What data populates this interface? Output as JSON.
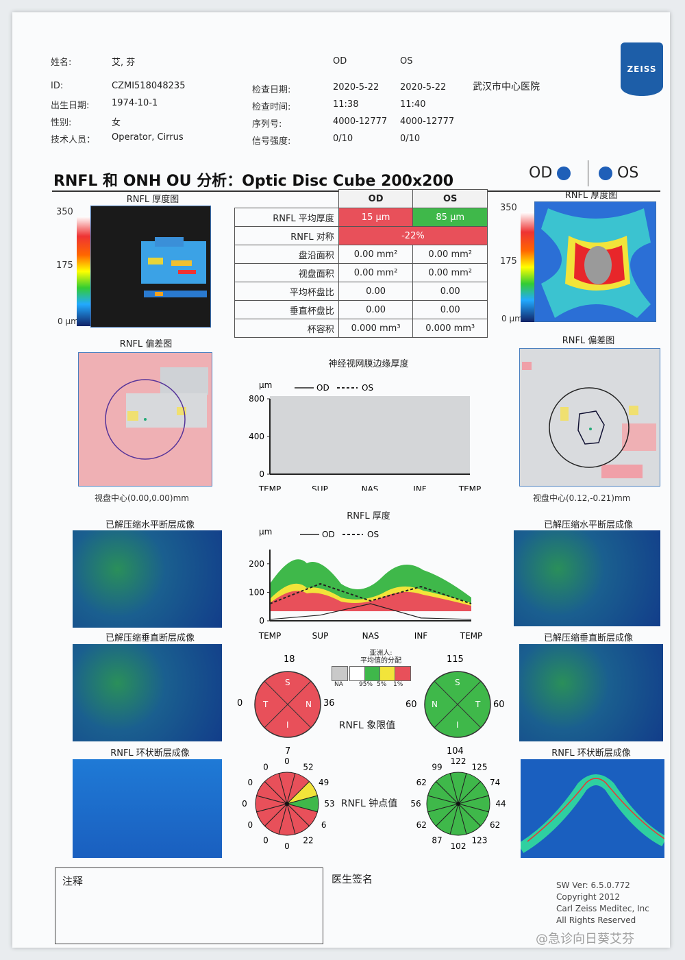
{
  "header": {
    "name_label": "姓名:",
    "name_value": "艾, 芬",
    "id_label": "ID:",
    "id_value": "CZMI518048235",
    "dob_label": "出生日期:",
    "dob_value": "1974-10-1",
    "sex_label": "性别:",
    "sex_value": "女",
    "tech_label": "技术人员：",
    "tech_value": "Operator, Cirrus",
    "col_od": "OD",
    "col_os": "OS",
    "exam_date_label": "检查日期:",
    "exam_date_od": "2020-5-22",
    "exam_date_os": "2020-5-22",
    "exam_time_label": "检查时间:",
    "exam_time_od": "11:38",
    "exam_time_os": "11:40",
    "serial_label": "序列号:",
    "serial_od": "4000-12777",
    "serial_os": "4000-12777",
    "signal_label": "信号强度:",
    "signal_od": "0/10",
    "signal_os": "0/10",
    "hospital": "武汉市中心医院",
    "logo": "ZEISS"
  },
  "title": {
    "text": "RNFL 和 ONH OU 分析：Optic Disc Cube 200x200",
    "od": "OD",
    "os": "OS"
  },
  "thickness_map": {
    "title": "RNFL 厚度图",
    "scale_max": "350",
    "scale_mid": "175",
    "scale_min": "0 μm"
  },
  "table": {
    "col_od": "OD",
    "col_os": "OS",
    "rows": [
      {
        "label": "RNFL 平均厚度",
        "od": "15 μm",
        "os": "85 μm"
      },
      {
        "label": "RNFL 对称",
        "both": "-22%"
      },
      {
        "label": "盘沿面积",
        "od": "0.00 mm²",
        "os": "0.00 mm²"
      },
      {
        "label": "视盘面积",
        "od": "0.00 mm²",
        "os": "0.00 mm²"
      },
      {
        "label": "平均杯盘比",
        "od": "0.00",
        "os": "0.00"
      },
      {
        "label": "垂直杯盘比",
        "od": "0.00",
        "os": "0.00"
      },
      {
        "label": "杯容积",
        "od": "0.000 mm³",
        "os": "0.000 mm³"
      }
    ]
  },
  "deviation_map": {
    "title": "RNFL 偏差图",
    "od_center": "视盘中心(0.00,0.00)mm",
    "os_center": "视盘中心(0.12,-0.21)mm"
  },
  "charts": {
    "nrr_title": "神经视网膜边缘厚度",
    "rnfl_title": "RNFL 厚度",
    "unit": "μm",
    "legend_od": "OD",
    "legend_os": "OS",
    "x_labels": [
      "TEMP",
      "SUP",
      "NAS",
      "INF",
      "TEMP"
    ]
  },
  "chart_data": [
    {
      "type": "line",
      "title": "神经视网膜边缘厚度",
      "ylabel": "μm",
      "categories": [
        "TEMP",
        "SUP",
        "NAS",
        "INF",
        "TEMP"
      ],
      "yticks": [
        0,
        400,
        800
      ],
      "ylim": [
        0,
        800
      ],
      "series": [
        {
          "name": "OD",
          "values": [
            0,
            0,
            0,
            0,
            0
          ]
        },
        {
          "name": "OS",
          "values": [
            0,
            0,
            0,
            0,
            0
          ]
        }
      ]
    },
    {
      "type": "line",
      "title": "RNFL 厚度",
      "ylabel": "μm",
      "categories": [
        "TEMP",
        "SUP",
        "NAS",
        "INF",
        "TEMP"
      ],
      "yticks": [
        0,
        100,
        200
      ],
      "ylim": [
        0,
        250
      ],
      "series": [
        {
          "name": "OD",
          "values": [
            5,
            20,
            60,
            10,
            5
          ]
        },
        {
          "name": "OS",
          "values": [
            60,
            130,
            70,
            120,
            60
          ]
        }
      ]
    }
  ],
  "scans": {
    "horizontal": "已解压缩水平断层成像",
    "vertical": "已解压缩垂直断层成像",
    "circle": "RNFL 环状断层成像"
  },
  "quadrants": {
    "title": "RNFL 象限值",
    "legend_title": "亚洲人:",
    "legend_sub": "平均值的分配",
    "legend_labels": [
      "NA",
      "95%",
      "5%",
      "1%"
    ],
    "od": {
      "top": "18",
      "left": "0",
      "right": "36",
      "bottom": "7",
      "S": "S",
      "T": "T",
      "N": "N",
      "I": "I"
    },
    "os": {
      "top": "115",
      "left": "60",
      "right": "60",
      "bottom": "104",
      "S": "S",
      "N": "N",
      "T": "T",
      "I": "I"
    }
  },
  "clock": {
    "title": "RNFL 钟点值",
    "od": [
      "0",
      "52",
      "49",
      "53",
      "6",
      "22",
      "0",
      "0",
      "0",
      "0",
      "0",
      "0"
    ],
    "os": [
      "122",
      "125",
      "74",
      "44",
      "62",
      "123",
      "102",
      "87",
      "62",
      "56",
      "62",
      "99"
    ]
  },
  "footer": {
    "notes_label": "注释",
    "doctor_label": "医生签名",
    "sw": "SW Ver: 6.5.0.772",
    "copyright": "Copyright 2012",
    "company": "Carl Zeiss Meditec, Inc",
    "rights": "All Rights Reserved",
    "watermark": "@急诊向日葵艾芬"
  },
  "colors": {
    "red": "#e8505a",
    "green": "#3fb84a",
    "yellow": "#f2e43a",
    "blue": "#1f5fb8"
  }
}
